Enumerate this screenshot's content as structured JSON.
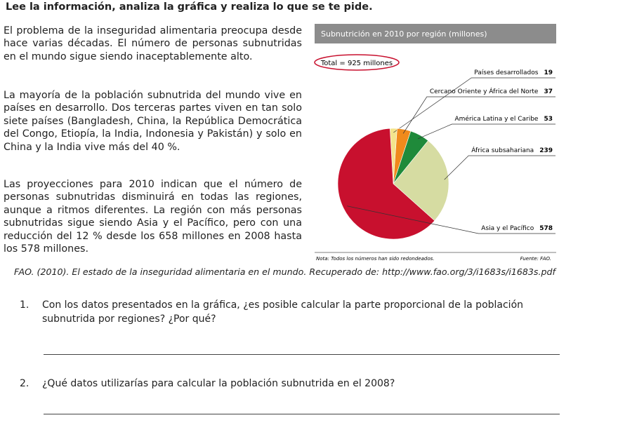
{
  "heading": "Lee la información, analiza la gráfica y realiza lo que se te pide.",
  "paragraphs": [
    "El problema de la inseguridad alimentaria preocupa desde hace varias décadas. El número de personas subnutridas en el mundo sigue siendo inaceptablemente alto.",
    "La mayoría de la población subnutrida del mundo vive en países en desarrollo. Dos terceras partes viven en tan solo siete países (Bangladesh, China, la República Democrática del Congo, Etiopía, la India, Indonesia y Pakistán) y solo en China y la India vive más del 40 %.",
    "Las proyecciones para 2010 indican que el número de personas subnutridas disminuirá en todas las regiones, aunque a ritmos diferentes. La región con más personas subnutridas sigue siendo Asia y el Pacífico, pero con una reducción del 12 % desde los 658 millones en 2008 hasta los 578 millones."
  ],
  "chart_data": {
    "type": "pie",
    "title": "Subnutrición en 2010 por región (millones)",
    "total": "Total = 925 millones",
    "categories": [
      "Países desarrollados",
      "Cercano Oriente y África del Norte",
      "América Latina y el Caribe",
      "África subsahariana",
      "Asia y el Pacífico"
    ],
    "values": [
      19,
      37,
      53,
      239,
      578
    ],
    "colors": [
      "#f3e48c",
      "#f08a1c",
      "#1f8a3a",
      "#d6dca2",
      "#c8102e"
    ],
    "note": "Nota: Todos los números han sido redondeados.",
    "source": "Fuente: FAO."
  },
  "citation": "FAO. (2010). El estado de la inseguridad alimentaria en el mundo. Recuperado de: http://www.fao.org/3/i1683s/i1683s.pdf",
  "questions": [
    {
      "number": "1.",
      "text": "Con los datos presentados en la gráfica, ¿es posible calcular la parte proporcional de la población subnutrida por regiones? ¿Por qué?"
    },
    {
      "number": "2.",
      "text": "¿Qué datos utilizarías para calcular la población subnutrida en el 2008?"
    }
  ]
}
